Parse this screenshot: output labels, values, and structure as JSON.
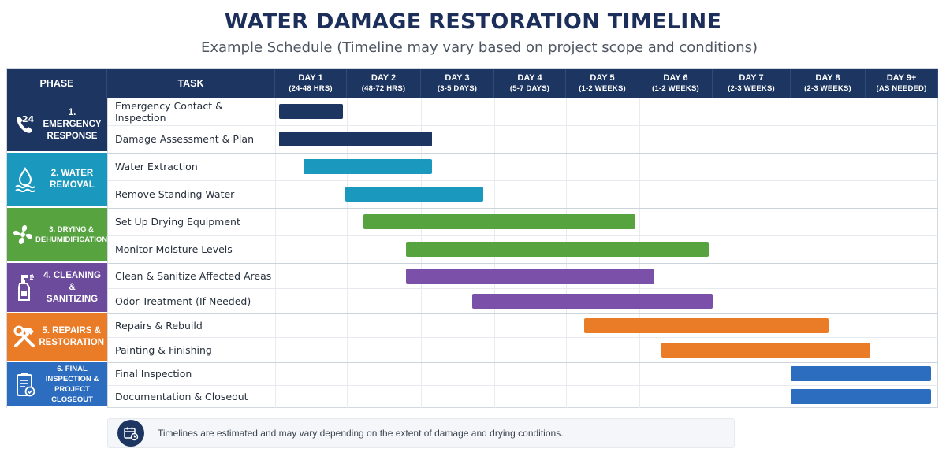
{
  "title": "WATER DAMAGE RESTORATION TIMELINE",
  "subtitle": "Example Schedule (Timeline may vary based on project scope and conditions)",
  "header": {
    "phase": "PHASE",
    "task": "TASK"
  },
  "columns": [
    {
      "day": "DAY 1",
      "range": "(24-48 HRS)"
    },
    {
      "day": "DAY 2",
      "range": "(48-72 HRS)"
    },
    {
      "day": "DAY 3",
      "range": "(3-5 DAYS)"
    },
    {
      "day": "DAY 4",
      "range": "(5-7 DAYS)"
    },
    {
      "day": "DAY 5",
      "range": "(1-2 WEEKS)"
    },
    {
      "day": "DAY 6",
      "range": "(1-2 WEEKS)"
    },
    {
      "day": "DAY 7",
      "range": "(2-3 WEEKS)"
    },
    {
      "day": "DAY 8",
      "range": "(2-3 WEEKS)"
    },
    {
      "day": "DAY 9+",
      "range": "(AS NEEDED)"
    }
  ],
  "phases": [
    {
      "line1": "1. EMERGENCY",
      "line2": "RESPONSE",
      "color": "#1d3561",
      "icon": "phone-24-icon"
    },
    {
      "line1": "2. WATER",
      "line2": "REMOVAL",
      "color": "#1b98bd",
      "icon": "water-drop-icon"
    },
    {
      "line1": "3. DRYING &",
      "line2": "DEHUMIDIFICATION",
      "color": "#56a33f",
      "icon": "fan-icon"
    },
    {
      "line1": "4. CLEANING &",
      "line2": "SANITIZING",
      "color": "#6c4a9c",
      "icon": "spray-bottle-icon"
    },
    {
      "line1": "5. REPAIRS &",
      "line2": "RESTORATION",
      "color": "#ea7b27",
      "icon": "hammer-wrench-icon"
    },
    {
      "line1": "6. FINAL INSPECTION &",
      "line2": "PROJECT CLOSEOUT",
      "color": "#2d6dbf",
      "icon": "clipboard-check-icon"
    }
  ],
  "chart_data": {
    "type": "gantt",
    "x_unit": "day column (1 = DAY 1 ... 9 = DAY 9+)",
    "tasks": [
      {
        "task": "Emergency Contact & Inspection",
        "phase": 0,
        "start": 1.05,
        "end": 1.95,
        "color": "#1d3561"
      },
      {
        "task": "Damage Assessment & Plan",
        "phase": 0,
        "start": 1.05,
        "end": 3.15,
        "color": "#1d3561"
      },
      {
        "task": "Water Extraction",
        "phase": 1,
        "start": 1.4,
        "end": 3.15,
        "color": "#1b98bd"
      },
      {
        "task": "Remove Standing Water",
        "phase": 1,
        "start": 1.98,
        "end": 3.85,
        "color": "#1b98bd"
      },
      {
        "task": "Set Up Drying Equipment",
        "phase": 2,
        "start": 2.22,
        "end": 5.95,
        "color": "#56a33f"
      },
      {
        "task": "Monitor Moisture Levels",
        "phase": 2,
        "start": 2.8,
        "end": 6.95,
        "color": "#56a33f"
      },
      {
        "task": "Clean & Sanitize Affected Areas",
        "phase": 3,
        "start": 2.8,
        "end": 6.2,
        "color": "#7a50a8"
      },
      {
        "task": "Odor Treatment (If Needed)",
        "phase": 3,
        "start": 3.7,
        "end": 7.0,
        "color": "#7a50a8"
      },
      {
        "task": "Repairs & Rebuild",
        "phase": 4,
        "start": 5.25,
        "end": 8.5,
        "color": "#ea7b27"
      },
      {
        "task": "Painting & Finishing",
        "phase": 4,
        "start": 6.3,
        "end": 9.07,
        "color": "#ea7b27"
      },
      {
        "task": "Final Inspection",
        "phase": 5,
        "start": 8.0,
        "end": 9.9,
        "color": "#2d6dbf"
      },
      {
        "task": "Documentation & Closeout",
        "phase": 5,
        "start": 8.0,
        "end": 9.9,
        "color": "#2d6dbf"
      }
    ]
  },
  "note": "Timelines are estimated and may vary depending on the extent of damage and drying conditions."
}
